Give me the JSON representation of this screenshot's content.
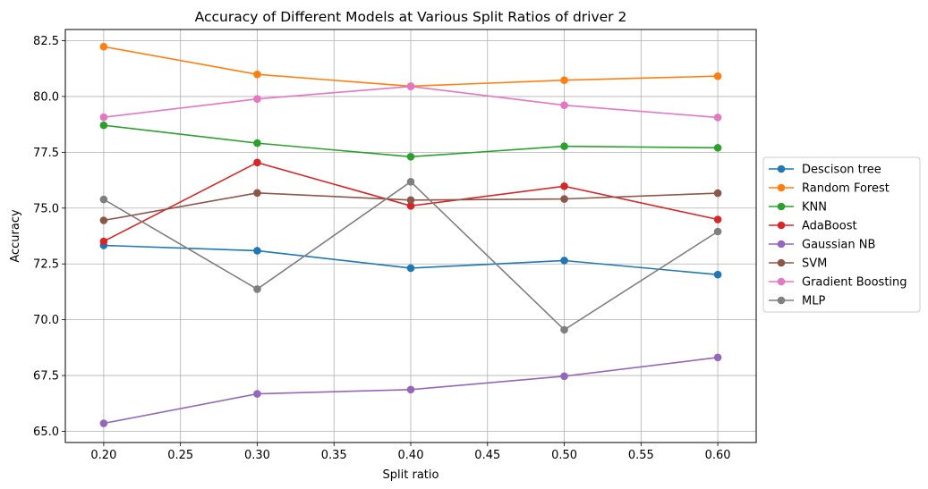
{
  "chart_data": {
    "type": "line",
    "title": "Accuracy of Different Models at Various Split Ratios of driver 2",
    "xlabel": "Split ratio",
    "ylabel": "Accuracy",
    "x": [
      0.2,
      0.3,
      0.4,
      0.5,
      0.6
    ],
    "xlim": [
      0.175,
      0.625
    ],
    "ylim": [
      64.5,
      83.0
    ],
    "xticks": [
      "0.20",
      "0.25",
      "0.30",
      "0.35",
      "0.40",
      "0.45",
      "0.50",
      "0.55",
      "0.60"
    ],
    "yticks": [
      "65.0",
      "67.5",
      "70.0",
      "72.5",
      "75.0",
      "77.5",
      "80.0",
      "82.5"
    ],
    "grid": true,
    "legend_position": "center-right outside",
    "series": [
      {
        "name": "Descison tree",
        "color": "#1f77b4",
        "values": [
          73.33,
          73.09,
          72.31,
          72.65,
          72.02
        ]
      },
      {
        "name": "Random Forest",
        "color": "#ff7f0e",
        "values": [
          82.23,
          80.99,
          80.46,
          80.73,
          80.91
        ]
      },
      {
        "name": "KNN",
        "color": "#2ca02c",
        "values": [
          78.71,
          77.91,
          77.3,
          77.77,
          77.7
        ]
      },
      {
        "name": "AdaBoost",
        "color": "#d62728",
        "values": [
          73.51,
          77.04,
          75.1,
          75.98,
          74.49
        ]
      },
      {
        "name": "Gaussian NB",
        "color": "#9467bd",
        "values": [
          65.36,
          66.68,
          66.87,
          67.47,
          68.31
        ]
      },
      {
        "name": "SVM",
        "color": "#8c564b",
        "values": [
          74.45,
          75.68,
          75.36,
          75.41,
          75.67
        ]
      },
      {
        "name": "Gradient Boosting",
        "color": "#e377c2",
        "values": [
          79.07,
          79.89,
          80.45,
          79.61,
          79.06
        ]
      },
      {
        "name": "MLP",
        "color": "#7f7f7f",
        "values": [
          75.39,
          71.37,
          76.18,
          69.55,
          73.95
        ]
      }
    ]
  }
}
